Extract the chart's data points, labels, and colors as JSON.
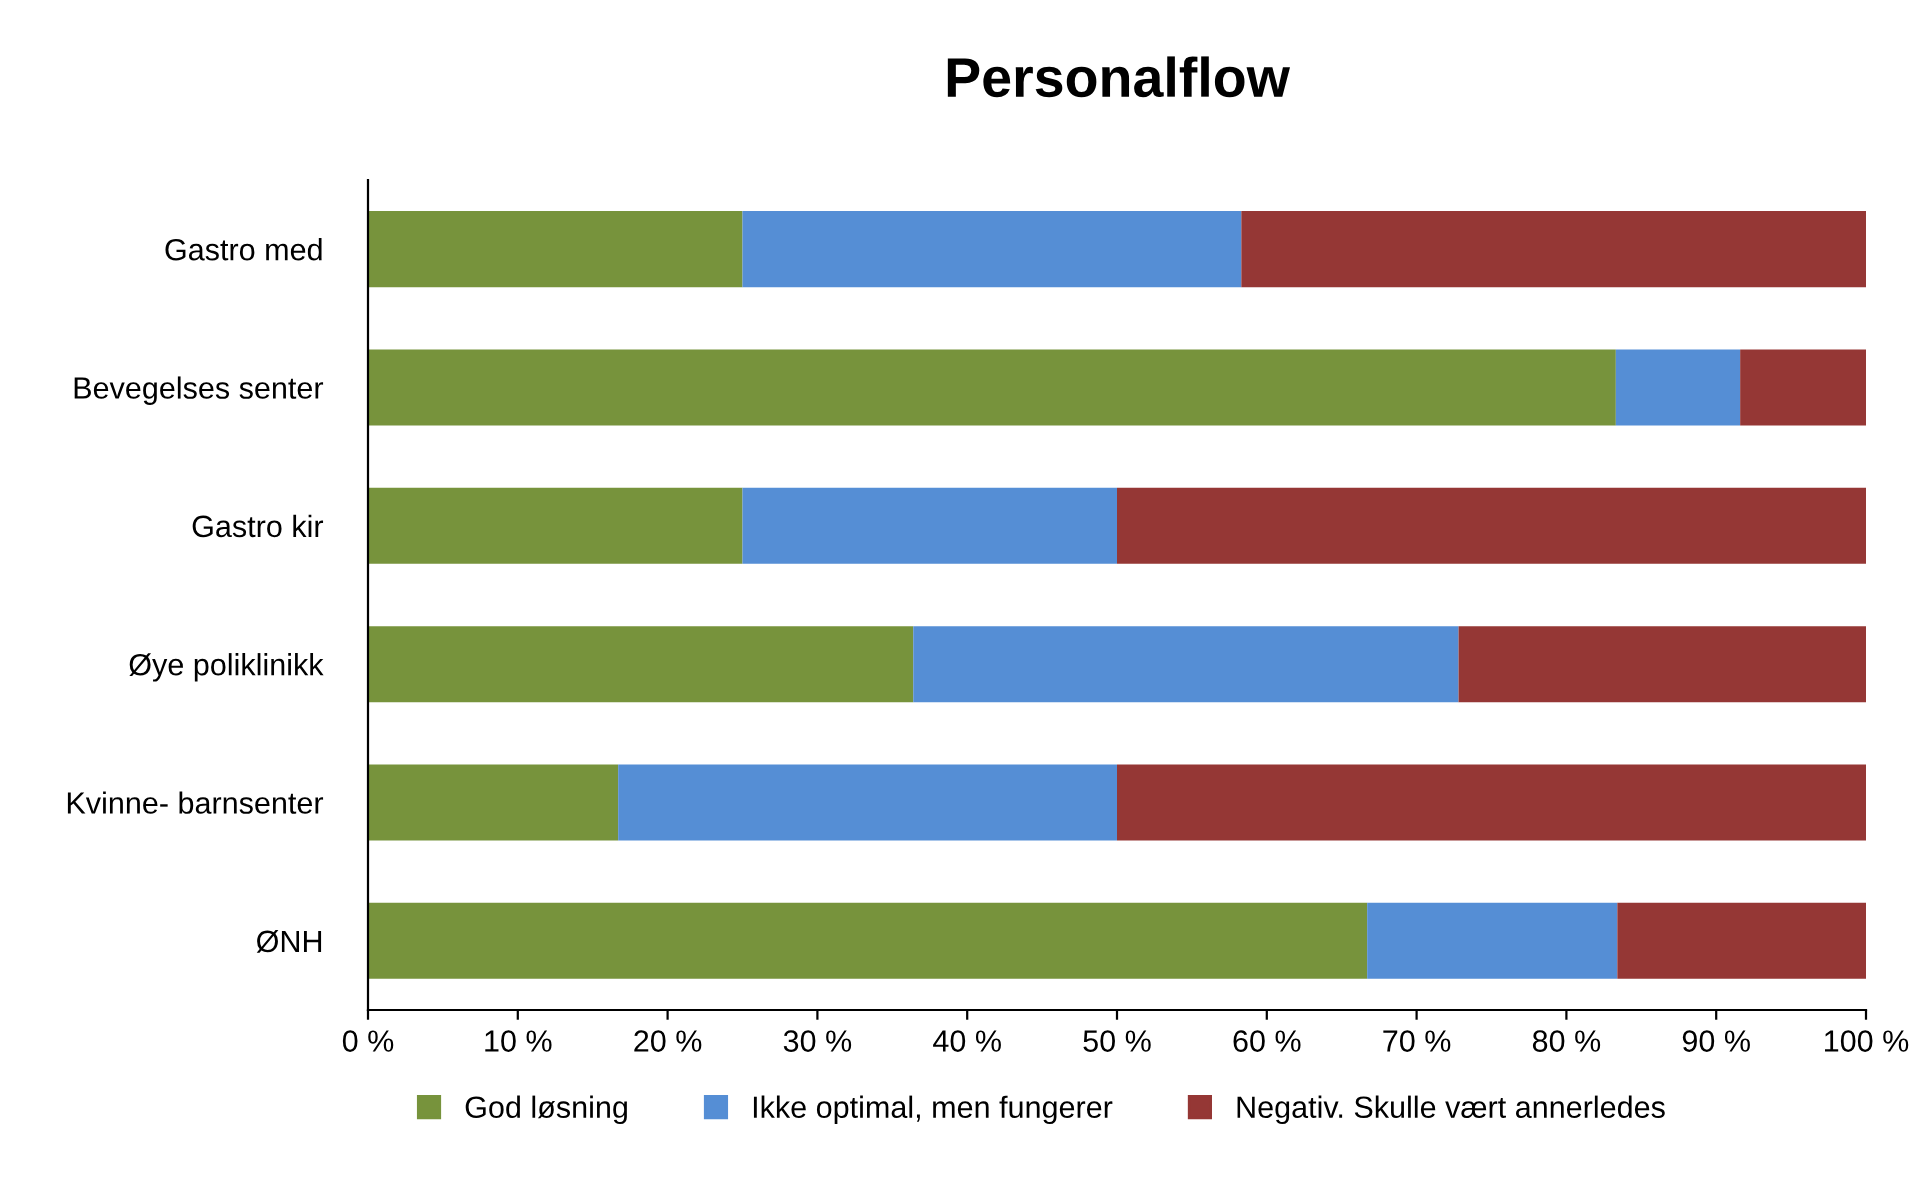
{
  "chart_data": {
    "type": "bar",
    "title": "Personalflow",
    "orientation": "horizontal",
    "stacked": true,
    "categories": [
      "Gastro med",
      "Bevegelses senter",
      "Gastro kir",
      "Øye poliklinikk",
      "Kvinne- barnsenter",
      "ØNH"
    ],
    "series": [
      {
        "name": "God løsning",
        "color": "#77933c",
        "values": [
          25,
          83.3,
          25,
          36.4,
          16.7,
          66.7
        ]
      },
      {
        "name": "Ikke optimal, men fungerer",
        "color": "#558ed5",
        "values": [
          33.3,
          8.3,
          25,
          36.4,
          33.3,
          16.7
        ]
      },
      {
        "name": "Negativ. Skulle vært annerledes",
        "color": "#953735",
        "values": [
          41.7,
          8.4,
          50,
          27.2,
          50,
          16.6
        ]
      }
    ],
    "xlim": [
      0,
      100
    ],
    "xticks": [
      {
        "value": 0,
        "label": "0 %"
      },
      {
        "value": 10,
        "label": "10 %"
      },
      {
        "value": 20,
        "label": "20 %"
      },
      {
        "value": 30,
        "label": "30 %"
      },
      {
        "value": 40,
        "label": "40 %"
      },
      {
        "value": 50,
        "label": "50 %"
      },
      {
        "value": 60,
        "label": "60 %"
      },
      {
        "value": 70,
        "label": "70 %"
      },
      {
        "value": 80,
        "label": "80 %"
      },
      {
        "value": 90,
        "label": "90 %"
      },
      {
        "value": 100,
        "label": "100 %"
      }
    ],
    "grid": false,
    "legend": "bottom"
  }
}
